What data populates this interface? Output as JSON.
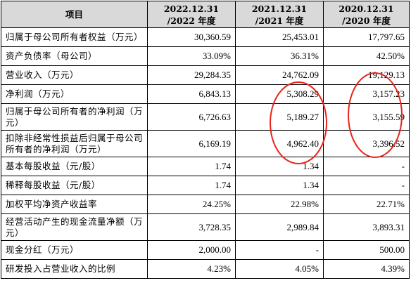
{
  "table": {
    "headers": [
      [
        "项目"
      ],
      [
        "2022.12.31",
        "/2022 年度"
      ],
      [
        "2021.12.31",
        "/2021 年度"
      ],
      [
        "2020.12.31",
        "/2020 年度"
      ]
    ],
    "rows": [
      {
        "label": "归属于母公司所有者权益（万元）",
        "values": [
          "30,360.59",
          "25,453.01",
          "17,797.65"
        ],
        "tall": false
      },
      {
        "label": "资产负债率（母公司）",
        "values": [
          "33.09%",
          "36.31%",
          "42.50%"
        ],
        "tall": false
      },
      {
        "label": "营业收入（万元）",
        "values": [
          "29,284.35",
          "24,762.09",
          "19,129.13"
        ],
        "tall": false
      },
      {
        "label": "净利润（万元）",
        "values": [
          "6,843.13",
          "5,308.29",
          "3,157.23"
        ],
        "tall": false
      },
      {
        "label": "归属于母公司所有者的净利润（万元）",
        "values": [
          "6,726.63",
          "5,189.27",
          "3,155.59"
        ],
        "tall": true
      },
      {
        "label": "扣除非经常性损益后归属于母公司所有者的净利润（万元）",
        "values": [
          "6,169.19",
          "4,962.40",
          "3,396.52"
        ],
        "tall": true
      },
      {
        "label": "基本每股收益（元/股）",
        "values": [
          "1.74",
          "1.34",
          "-"
        ],
        "tall": false
      },
      {
        "label": "稀释每股收益（元/股）",
        "values": [
          "1.74",
          "1.34",
          "-"
        ],
        "tall": false
      },
      {
        "label": "加权平均净资产收益率",
        "values": [
          "24.25%",
          "22.98%",
          "22.71%"
        ],
        "tall": false
      },
      {
        "label": "经营活动产生的现金流量净额（万元）",
        "values": [
          "3,728.35",
          "2,989.84",
          "3,893.31"
        ],
        "tall": true
      },
      {
        "label": "现金分红（万元）",
        "values": [
          "2,000.00",
          "-",
          "500.00"
        ],
        "tall": false
      },
      {
        "label": "研发投入占营业收入的比例",
        "values": [
          "4.23%",
          "4.05%",
          "4.39%"
        ],
        "tall": false
      }
    ]
  },
  "annotations": {
    "highlight_color": "#e8231c"
  }
}
